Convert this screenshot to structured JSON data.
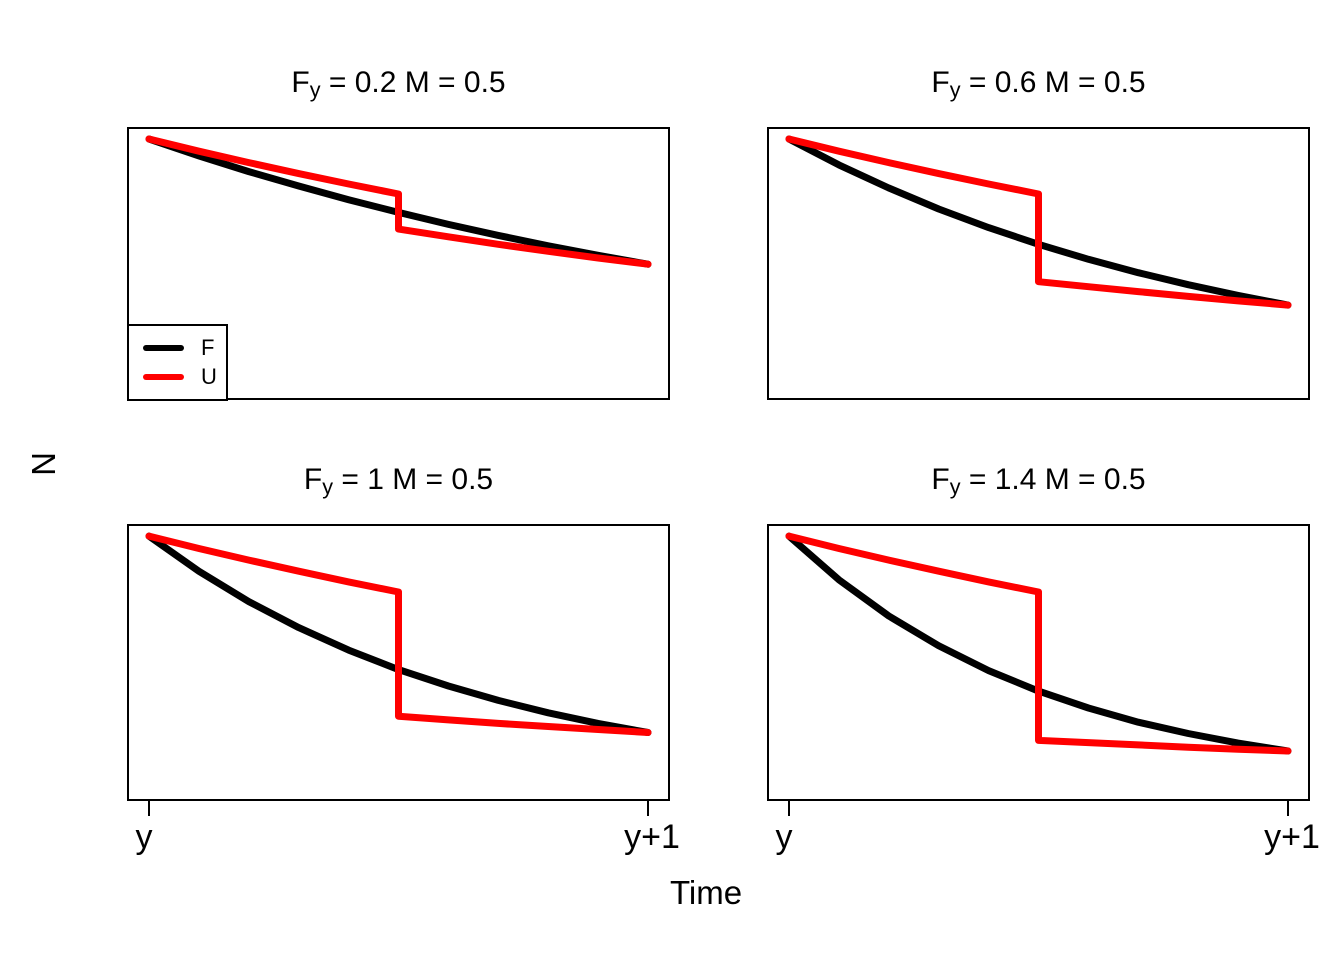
{
  "figure": {
    "background": "#FFFFFF",
    "ylabel": "N",
    "xlabel": "Time",
    "legend": {
      "entries": [
        {
          "label": "F",
          "color": "#000000"
        },
        {
          "label": "U",
          "color": "#FF0000"
        }
      ]
    }
  },
  "axis": {
    "x_tick_labels": [
      "y",
      "y+1"
    ]
  },
  "panels": [
    {
      "title_f": "F",
      "title_sub": "y",
      "title_rest": " = 0.2 M = 0.5"
    },
    {
      "title_f": "F",
      "title_sub": "y",
      "title_rest": " = 0.6 M = 0.5"
    },
    {
      "title_f": "F",
      "title_sub": "y",
      "title_rest": " = 1 M = 0.5"
    },
    {
      "title_f": "F",
      "title_sub": "y",
      "title_rest": " = 1.4 M = 0.5"
    }
  ],
  "chart_data": [
    {
      "type": "line",
      "title": "Fy = 0.2 M = 0.5",
      "params": {
        "Fy": 0.2,
        "M": 0.5
      },
      "xlabel": "Time",
      "ylabel": "N",
      "xlim": [
        0,
        1
      ],
      "ylim": [
        0,
        1
      ],
      "x_tick_labels": [
        "y",
        "y+1"
      ],
      "grid": false,
      "legend_position": "bottom-left (this panel only)",
      "series": [
        {
          "name": "F",
          "color": "#000000",
          "x": [
            0,
            0.1,
            0.2,
            0.3,
            0.4,
            0.5,
            0.6,
            0.7,
            0.8,
            0.9,
            1
          ],
          "y": [
            1,
            0.932,
            0.869,
            0.811,
            0.756,
            0.705,
            0.657,
            0.613,
            0.571,
            0.533,
            0.497
          ]
        },
        {
          "name": "U",
          "color": "#FF0000",
          "x": [
            0,
            0.1,
            0.2,
            0.3,
            0.4,
            0.5,
            0.5,
            0.6,
            0.7,
            0.8,
            0.9,
            1
          ],
          "y": [
            1,
            0.951,
            0.905,
            0.861,
            0.819,
            0.779,
            0.638,
            0.607,
            0.577,
            0.549,
            0.522,
            0.497
          ]
        }
      ]
    },
    {
      "type": "line",
      "title": "Fy = 0.6 M = 0.5",
      "params": {
        "Fy": 0.6,
        "M": 0.5
      },
      "xlabel": "Time",
      "ylabel": "N",
      "xlim": [
        0,
        1
      ],
      "ylim": [
        0,
        1
      ],
      "x_tick_labels": [
        "y",
        "y+1"
      ],
      "grid": false,
      "series": [
        {
          "name": "F",
          "color": "#000000",
          "x": [
            0,
            0.1,
            0.2,
            0.3,
            0.4,
            0.5,
            0.6,
            0.7,
            0.8,
            0.9,
            1
          ],
          "y": [
            1,
            0.896,
            0.803,
            0.719,
            0.644,
            0.577,
            0.517,
            0.463,
            0.415,
            0.372,
            0.333
          ]
        },
        {
          "name": "U",
          "color": "#FF0000",
          "x": [
            0,
            0.1,
            0.2,
            0.3,
            0.4,
            0.5,
            0.5,
            0.6,
            0.7,
            0.8,
            0.9,
            1
          ],
          "y": [
            1,
            0.951,
            0.905,
            0.861,
            0.819,
            0.779,
            0.427,
            0.407,
            0.387,
            0.368,
            0.35,
            0.333
          ]
        }
      ]
    },
    {
      "type": "line",
      "title": "Fy = 1 M = 0.5",
      "params": {
        "Fy": 1,
        "M": 0.5
      },
      "xlabel": "Time",
      "ylabel": "N",
      "xlim": [
        0,
        1
      ],
      "ylim": [
        0,
        1
      ],
      "x_tick_labels": [
        "y",
        "y+1"
      ],
      "grid": false,
      "series": [
        {
          "name": "F",
          "color": "#000000",
          "x": [
            0,
            0.1,
            0.2,
            0.3,
            0.4,
            0.5,
            0.6,
            0.7,
            0.8,
            0.9,
            1
          ],
          "y": [
            1,
            0.861,
            0.741,
            0.638,
            0.549,
            0.472,
            0.407,
            0.35,
            0.301,
            0.259,
            0.223
          ]
        },
        {
          "name": "U",
          "color": "#FF0000",
          "x": [
            0,
            0.1,
            0.2,
            0.3,
            0.4,
            0.5,
            0.5,
            0.6,
            0.7,
            0.8,
            0.9,
            1
          ],
          "y": [
            1,
            0.951,
            0.905,
            0.861,
            0.819,
            0.779,
            0.287,
            0.273,
            0.259,
            0.247,
            0.235,
            0.223
          ]
        }
      ]
    },
    {
      "type": "line",
      "title": "Fy = 1.4 M = 0.5",
      "params": {
        "Fy": 1.4,
        "M": 0.5
      },
      "xlabel": "Time",
      "ylabel": "N",
      "xlim": [
        0,
        1
      ],
      "ylim": [
        0,
        1
      ],
      "x_tick_labels": [
        "y",
        "y+1"
      ],
      "grid": false,
      "series": [
        {
          "name": "F",
          "color": "#000000",
          "x": [
            0,
            0.1,
            0.2,
            0.3,
            0.4,
            0.5,
            0.6,
            0.7,
            0.8,
            0.9,
            1
          ],
          "y": [
            1,
            0.827,
            0.684,
            0.566,
            0.468,
            0.387,
            0.32,
            0.264,
            0.219,
            0.181,
            0.15
          ]
        },
        {
          "name": "U",
          "color": "#FF0000",
          "x": [
            0,
            0.1,
            0.2,
            0.3,
            0.4,
            0.5,
            0.5,
            0.6,
            0.7,
            0.8,
            0.9,
            1
          ],
          "y": [
            1,
            0.951,
            0.905,
            0.861,
            0.819,
            0.779,
            0.192,
            0.183,
            0.174,
            0.165,
            0.157,
            0.15
          ]
        }
      ]
    }
  ]
}
